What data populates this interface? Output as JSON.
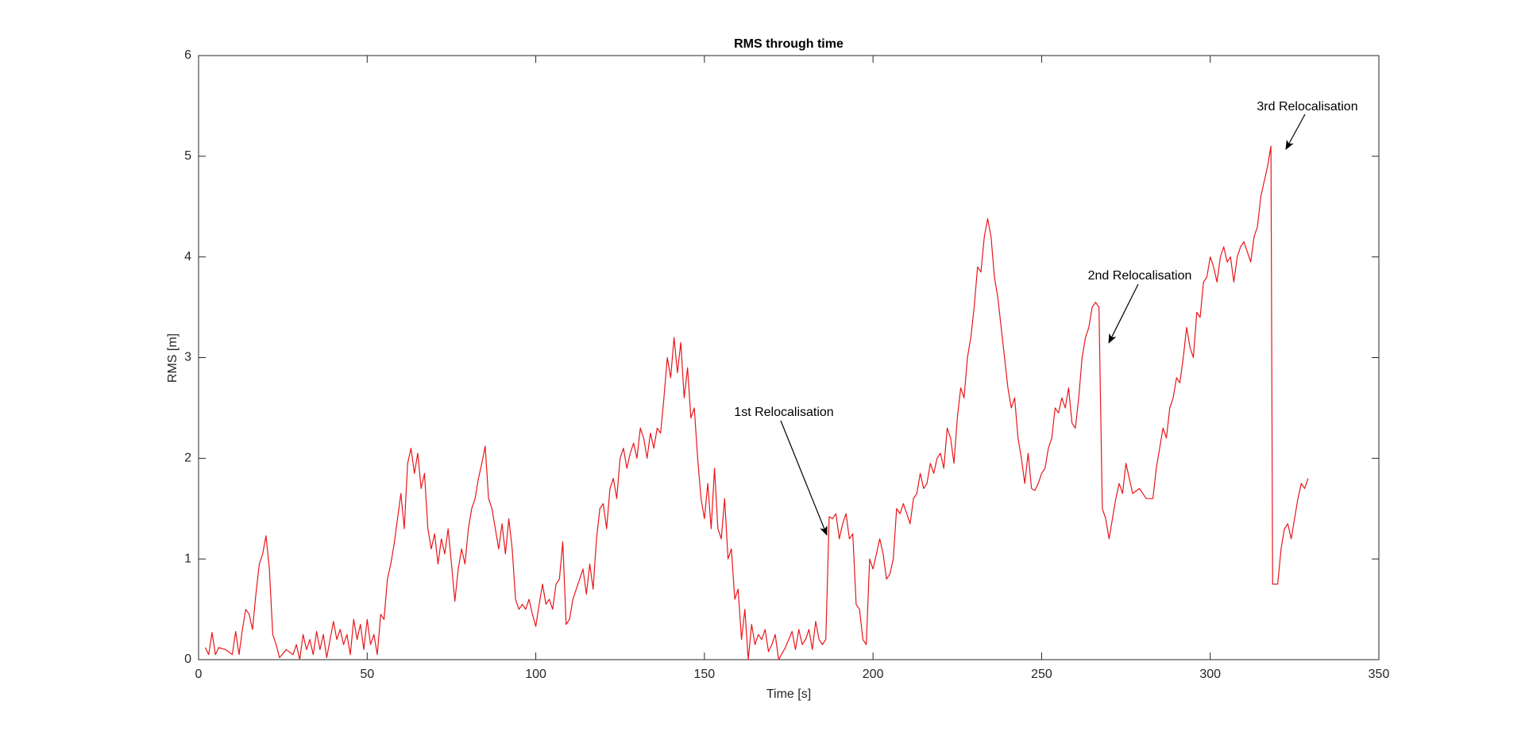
{
  "chart_data": {
    "type": "line",
    "title": "RMS through time",
    "x_label": "Time [s]",
    "y_label": "RMS [m]",
    "color": "#e8161b",
    "xlim": [
      0,
      350
    ],
    "xticks": [
      0,
      50,
      100,
      150,
      200,
      250,
      300,
      350
    ],
    "ylim": [
      0,
      6
    ],
    "yticks": [
      0,
      1,
      2,
      3,
      4,
      5,
      6
    ],
    "grid": false,
    "annotations": [
      {
        "text": "1st Relocalisation"
      },
      {
        "text": "2nd Relocalisation"
      },
      {
        "text": "3rd Relocalisation"
      }
    ],
    "x": [
      2,
      3,
      4,
      5,
      6,
      8,
      10,
      11,
      12,
      13,
      14,
      15,
      16,
      17,
      18,
      19,
      20,
      21,
      22,
      23,
      24,
      26,
      28,
      29,
      30,
      31,
      32,
      33,
      34,
      35,
      36,
      37,
      38,
      40,
      41,
      42,
      43,
      44,
      45,
      46,
      47,
      48,
      49,
      50,
      51,
      52,
      53,
      54,
      55,
      56,
      57,
      58,
      59,
      60,
      61,
      62,
      63,
      64,
      65,
      66,
      67,
      68,
      69,
      70,
      71,
      72,
      73,
      74,
      75,
      76,
      77,
      78,
      79,
      80,
      81,
      82,
      83,
      84,
      85,
      86,
      87,
      88,
      89,
      90,
      91,
      92,
      93,
      94,
      95,
      96,
      97,
      98,
      99,
      100,
      101,
      102,
      103,
      104,
      105,
      106,
      107,
      108,
      109,
      110,
      111,
      112,
      113,
      114,
      115,
      116,
      117,
      118,
      119,
      120,
      121,
      122,
      123,
      124,
      125,
      126,
      127,
      128,
      129,
      130,
      131,
      132,
      133,
      134,
      135,
      136,
      137,
      138,
      139,
      140,
      141,
      142,
      143,
      144,
      145,
      146,
      147,
      148,
      149,
      150,
      151,
      152,
      153,
      154,
      155,
      156,
      157,
      158,
      159,
      160,
      161,
      162,
      163,
      164,
      165,
      166,
      167,
      168,
      169,
      170,
      171,
      172,
      174,
      176,
      177,
      178,
      179,
      180,
      181,
      182,
      183,
      184,
      185,
      186,
      187,
      188,
      189,
      190,
      191,
      192,
      193,
      194,
      195,
      196,
      197,
      198,
      199,
      200,
      201,
      202,
      203,
      204,
      205,
      206,
      207,
      208,
      209,
      210,
      211,
      212,
      213,
      214,
      215,
      216,
      217,
      218,
      219,
      220,
      221,
      222,
      223,
      224,
      225,
      226,
      227,
      228,
      229,
      230,
      231,
      232,
      233,
      234,
      235,
      236,
      237,
      238,
      239,
      240,
      241,
      242,
      243,
      244,
      245,
      246,
      247,
      248,
      249,
      250,
      251,
      252,
      253,
      254,
      255,
      256,
      257,
      258,
      259,
      260,
      261,
      262,
      263,
      264,
      265,
      266,
      267,
      268,
      269,
      270,
      271,
      272,
      273,
      274,
      275,
      276,
      277,
      279,
      281,
      283,
      284,
      285,
      286,
      287,
      288,
      289,
      290,
      291,
      292,
      293,
      294,
      295,
      296,
      297,
      298,
      299,
      300,
      301,
      302,
      303,
      304,
      305,
      306,
      307,
      308,
      309,
      310,
      311,
      312,
      313,
      314,
      315,
      316,
      317,
      318,
      318.5,
      320,
      321,
      322,
      323,
      324,
      325,
      326,
      327,
      328,
      329
    ],
    "values": [
      0.12,
      0.05,
      0.27,
      0.05,
      0.12,
      0.1,
      0.05,
      0.28,
      0.05,
      0.3,
      0.5,
      0.45,
      0.3,
      0.65,
      0.95,
      1.05,
      1.23,
      0.9,
      0.25,
      0.15,
      0.02,
      0.1,
      0.05,
      0.15,
      0.0,
      0.25,
      0.1,
      0.2,
      0.05,
      0.28,
      0.1,
      0.25,
      0.02,
      0.38,
      0.2,
      0.3,
      0.15,
      0.25,
      0.05,
      0.4,
      0.2,
      0.35,
      0.1,
      0.4,
      0.15,
      0.25,
      0.05,
      0.45,
      0.4,
      0.8,
      0.95,
      1.15,
      1.4,
      1.65,
      1.3,
      1.95,
      2.1,
      1.85,
      2.05,
      1.7,
      1.85,
      1.3,
      1.1,
      1.25,
      0.95,
      1.2,
      1.05,
      1.3,
      0.95,
      0.58,
      0.9,
      1.1,
      0.95,
      1.3,
      1.5,
      1.6,
      1.8,
      1.95,
      2.12,
      1.6,
      1.5,
      1.3,
      1.1,
      1.35,
      1.05,
      1.4,
      1.1,
      0.6,
      0.5,
      0.55,
      0.5,
      0.6,
      0.45,
      0.33,
      0.55,
      0.75,
      0.55,
      0.6,
      0.5,
      0.75,
      0.8,
      1.17,
      0.35,
      0.4,
      0.6,
      0.7,
      0.8,
      0.9,
      0.65,
      0.95,
      0.7,
      1.2,
      1.5,
      1.55,
      1.3,
      1.7,
      1.8,
      1.6,
      2.0,
      2.1,
      1.9,
      2.05,
      2.15,
      2.0,
      2.3,
      2.2,
      2.0,
      2.25,
      2.1,
      2.3,
      2.25,
      2.6,
      3.0,
      2.8,
      3.2,
      2.85,
      3.15,
      2.6,
      2.9,
      2.4,
      2.5,
      2.0,
      1.6,
      1.4,
      1.75,
      1.3,
      1.9,
      1.3,
      1.2,
      1.6,
      1.0,
      1.1,
      0.6,
      0.7,
      0.2,
      0.5,
      0.0,
      0.35,
      0.15,
      0.25,
      0.2,
      0.3,
      0.08,
      0.15,
      0.25,
      0.0,
      0.12,
      0.28,
      0.1,
      0.3,
      0.15,
      0.2,
      0.3,
      0.1,
      0.38,
      0.2,
      0.15,
      0.2,
      1.42,
      1.4,
      1.45,
      1.2,
      1.35,
      1.45,
      1.2,
      1.25,
      0.55,
      0.5,
      0.2,
      0.15,
      1.0,
      0.9,
      1.05,
      1.2,
      1.05,
      0.8,
      0.85,
      1.0,
      1.5,
      1.45,
      1.55,
      1.45,
      1.35,
      1.6,
      1.65,
      1.85,
      1.7,
      1.75,
      1.95,
      1.85,
      2.0,
      2.05,
      1.9,
      2.3,
      2.2,
      1.95,
      2.4,
      2.7,
      2.6,
      3.0,
      3.2,
      3.5,
      3.9,
      3.85,
      4.2,
      4.38,
      4.2,
      3.8,
      3.6,
      3.3,
      3.0,
      2.7,
      2.5,
      2.6,
      2.2,
      2.0,
      1.75,
      2.05,
      1.7,
      1.68,
      1.75,
      1.85,
      1.9,
      2.1,
      2.2,
      2.5,
      2.45,
      2.6,
      2.5,
      2.7,
      2.35,
      2.3,
      2.6,
      3.0,
      3.2,
      3.3,
      3.5,
      3.55,
      3.5,
      1.5,
      1.4,
      1.2,
      1.4,
      1.6,
      1.75,
      1.65,
      1.95,
      1.8,
      1.65,
      1.7,
      1.6,
      1.6,
      1.9,
      2.1,
      2.3,
      2.2,
      2.5,
      2.6,
      2.8,
      2.75,
      3.0,
      3.3,
      3.1,
      3.0,
      3.45,
      3.4,
      3.75,
      3.8,
      4.0,
      3.9,
      3.75,
      4.0,
      4.1,
      3.95,
      4.0,
      3.75,
      4.0,
      4.1,
      4.15,
      4.05,
      3.95,
      4.2,
      4.3,
      4.6,
      4.75,
      4.9,
      5.1,
      0.75,
      0.75,
      1.1,
      1.3,
      1.35,
      1.2,
      1.4,
      1.6,
      1.75,
      1.7,
      1.8
    ]
  }
}
